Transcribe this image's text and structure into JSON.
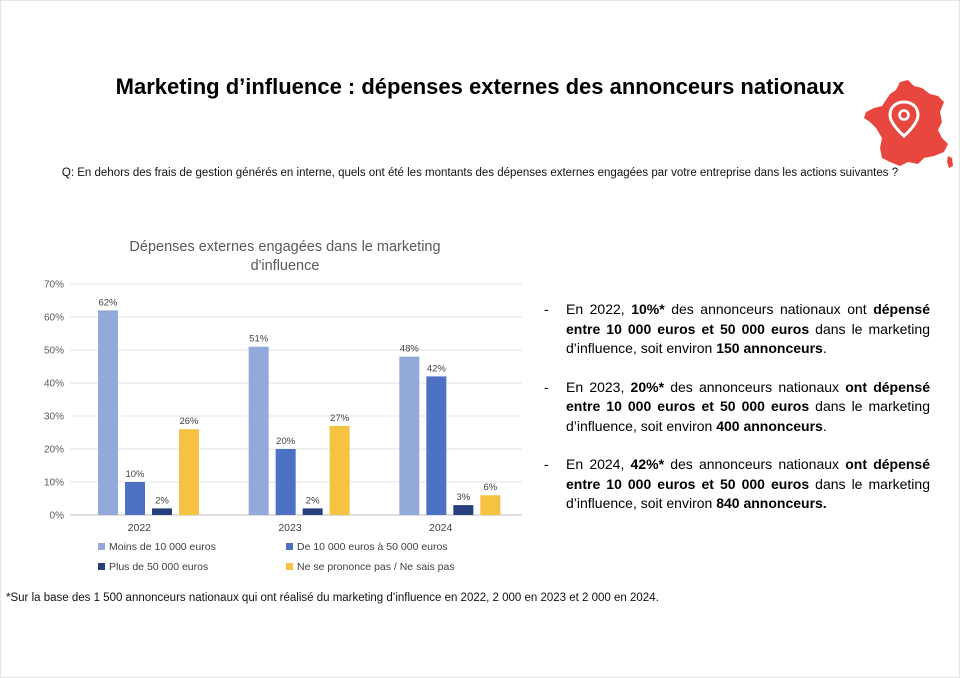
{
  "title": "Marketing d’influence : dépenses externes des annonceurs nationaux",
  "question": "Q: En dehors des frais de gestion générés en interne, quels ont été les montants des dépenses externes engagées par votre entreprise dans les actions suivantes ?",
  "map_icon": {
    "name": "france-map-location-pin-icon",
    "color": "#E8473F"
  },
  "chart_data": {
    "type": "bar",
    "title_lines": [
      "Dépenses externes engagées dans le marketing",
      "d'influence"
    ],
    "categories": [
      "2022",
      "2023",
      "2024"
    ],
    "series": [
      {
        "name": "Moins de 10 000 euros",
        "color": "#93A9DA",
        "values": [
          62,
          51,
          48
        ],
        "labels": [
          "62%",
          "51%",
          "48%"
        ]
      },
      {
        "name": "De 10 000 euros à 50 000 euros",
        "color": "#4D72C3",
        "values": [
          10,
          20,
          42
        ],
        "labels": [
          "10%",
          "20%",
          "42%"
        ]
      },
      {
        "name": "Plus de 50 000 euros",
        "color": "#273F7C",
        "values": [
          2,
          2,
          3
        ],
        "labels": [
          "2%",
          "2%",
          "3%"
        ]
      },
      {
        "name": "Ne se prononce pas / Ne sais pas",
        "color": "#F5C341",
        "values": [
          26,
          27,
          6
        ],
        "labels": [
          "26%",
          "27%",
          "6%"
        ]
      }
    ],
    "ylim": [
      0,
      70
    ],
    "yticks": [
      0,
      10,
      20,
      30,
      40,
      50,
      60,
      70
    ],
    "ytick_labels": [
      "0%",
      "10%",
      "20%",
      "30%",
      "40%",
      "50%",
      "60%",
      "70%"
    ],
    "grid": true,
    "legend_position": "bottom"
  },
  "bullets": [
    [
      {
        "t": "En 2022, ",
        "b": false
      },
      {
        "t": "10%*",
        "b": true
      },
      {
        "t": " des annonceurs nationaux ont ",
        "b": false
      },
      {
        "t": "dépensé entre 10 000 euros et 50 000 euros",
        "b": true
      },
      {
        "t": " dans le marketing d’influence, soit environ ",
        "b": false
      },
      {
        "t": "150 annonceurs",
        "b": true
      },
      {
        "t": ".",
        "b": false
      }
    ],
    [
      {
        "t": "En 2023, ",
        "b": false
      },
      {
        "t": "20%*",
        "b": true
      },
      {
        "t": " des annonceurs nationaux ",
        "b": false
      },
      {
        "t": "ont dépensé entre 10 000 euros et 50 000 euros",
        "b": true
      },
      {
        "t": " dans le marketing d’influence, soit environ ",
        "b": false
      },
      {
        "t": "400 annonceurs",
        "b": true
      },
      {
        "t": ".",
        "b": false
      }
    ],
    [
      {
        "t": "En 2024, ",
        "b": false
      },
      {
        "t": "42%*",
        "b": true
      },
      {
        "t": " des annonceurs nationaux ",
        "b": false
      },
      {
        "t": "ont dépensé entre 10 000 euros et 50 000 euros",
        "b": true
      },
      {
        "t": " dans le marketing d’influence, soit environ ",
        "b": false
      },
      {
        "t": "840 annonceurs.",
        "b": true
      }
    ]
  ],
  "footnote": "*Sur la base des 1 500 annonceurs nationaux qui ont réalisé du marketing d’influence en 2022, 2 000 en 2023 et 2 000 en 2024."
}
